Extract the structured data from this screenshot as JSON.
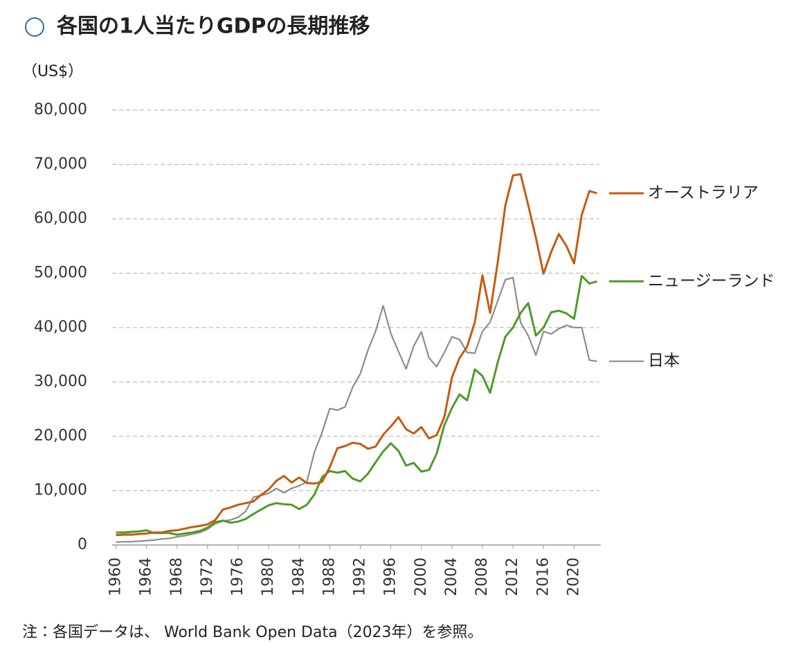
{
  "chart_data": {
    "type": "line",
    "title": "各国の1人当たりGDPの長期推移",
    "y_label": "（US$）",
    "note": "注：各国データは、 World Bank Open Data（2023年）を参照。",
    "x": [
      1960,
      1961,
      1962,
      1963,
      1964,
      1965,
      1966,
      1967,
      1968,
      1969,
      1970,
      1971,
      1972,
      1973,
      1974,
      1975,
      1976,
      1977,
      1978,
      1979,
      1980,
      1981,
      1982,
      1983,
      1984,
      1985,
      1986,
      1987,
      1988,
      1989,
      1990,
      1991,
      1992,
      1993,
      1994,
      1995,
      1996,
      1997,
      1998,
      1999,
      2000,
      2001,
      2002,
      2003,
      2004,
      2005,
      2006,
      2007,
      2008,
      2009,
      2010,
      2011,
      2012,
      2013,
      2014,
      2015,
      2016,
      2017,
      2018,
      2019,
      2020,
      2021,
      2022,
      2023
    ],
    "xlim": [
      1959.5,
      2023.5
    ],
    "xticks": [
      1960,
      1964,
      1968,
      1972,
      1976,
      1980,
      1984,
      1988,
      1992,
      1996,
      2000,
      2004,
      2008,
      2012,
      2016,
      2020
    ],
    "ylim": [
      0,
      80000
    ],
    "yticks": [
      0,
      {
        "value": 10000,
        "label": "10,000"
      },
      {
        "value": 20000,
        "label": "20,000"
      },
      {
        "value": 30000,
        "label": "30,000"
      },
      {
        "value": 40000,
        "label": "40,000"
      },
      {
        "value": 50000,
        "label": "50,000"
      },
      {
        "value": 60000,
        "label": "60,000"
      },
      {
        "value": 70000,
        "label": "70,000"
      },
      {
        "value": 80000,
        "label": "80,000"
      }
    ],
    "grid": true,
    "series": [
      {
        "name": "オーストラリア",
        "color": "#c55a11",
        "values": [
          1800,
          1900,
          1900,
          2000,
          2100,
          2300,
          2300,
          2600,
          2700,
          3000,
          3300,
          3500,
          3800,
          4600,
          6500,
          6900,
          7400,
          7700,
          8000,
          9200,
          10200,
          11800,
          12700,
          11500,
          12400,
          11400,
          11300,
          11600,
          14300,
          17800,
          18200,
          18800,
          18600,
          17700,
          18100,
          20300,
          21800,
          23500,
          21300,
          20500,
          21700,
          19600,
          20200,
          23500,
          30800,
          34400,
          36500,
          41000,
          49600,
          42700,
          52000,
          62500,
          68000,
          68200,
          62500,
          56500,
          49900,
          53900,
          57200,
          55000,
          51800,
          60700,
          65100,
          64700
        ]
      },
      {
        "name": "ニュージーランド",
        "color": "#4e9a28",
        "values": [
          2300,
          2300,
          2400,
          2500,
          2700,
          2200,
          2200,
          2200,
          1900,
          2100,
          2300,
          2600,
          3200,
          4200,
          4500,
          4100,
          4300,
          4800,
          5700,
          6500,
          7300,
          7700,
          7500,
          7400,
          6600,
          7400,
          9300,
          12500,
          13600,
          13300,
          13600,
          12200,
          11700,
          13100,
          15200,
          17200,
          18700,
          17300,
          14600,
          15100,
          13500,
          13800,
          16800,
          22000,
          25200,
          27700,
          26600,
          32300,
          31100,
          28000,
          33600,
          38300,
          40000,
          42700,
          44500,
          38500,
          40000,
          42800,
          43100,
          42600,
          41600,
          49500,
          48100,
          48500
        ]
      },
      {
        "name": "日本",
        "color": "#8c8c8c",
        "values": [
          500,
          600,
          600,
          700,
          800,
          900,
          1100,
          1200,
          1500,
          1700,
          2000,
          2300,
          2900,
          3900,
          4400,
          4600,
          5100,
          6200,
          8800,
          9100,
          9500,
          10400,
          9600,
          10400,
          10900,
          11600,
          17100,
          20700,
          25100,
          24800,
          25400,
          29000,
          31500,
          35800,
          39300,
          44000,
          38900,
          35600,
          32400,
          36600,
          39200,
          34400,
          32800,
          35400,
          38300,
          37800,
          35400,
          35300,
          39300,
          41000,
          44900,
          48800,
          49200,
          40900,
          38500,
          34900,
          39300,
          38800,
          39800,
          40400,
          40000,
          40000,
          34000,
          33800
        ]
      }
    ]
  }
}
